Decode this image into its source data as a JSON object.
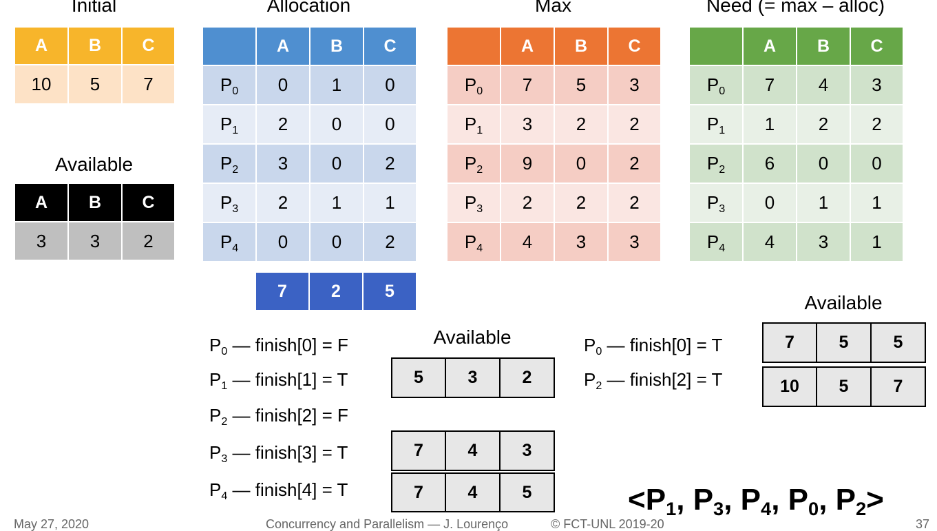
{
  "titles": {
    "initial": "Initial",
    "allocation": "Allocation",
    "max": "Max",
    "need": "Need (= max – alloc)",
    "available_left": "Available",
    "available_mid": "Available",
    "available_right": "Available"
  },
  "columns": [
    "A",
    "B",
    "C"
  ],
  "process_prefix": "P",
  "initial": [
    "10",
    "5",
    "7"
  ],
  "available": [
    "3",
    "3",
    "2"
  ],
  "allocation": [
    {
      "p": "0",
      "v": [
        "0",
        "1",
        "0"
      ]
    },
    {
      "p": "1",
      "v": [
        "2",
        "0",
        "0"
      ]
    },
    {
      "p": "2",
      "v": [
        "3",
        "0",
        "2"
      ]
    },
    {
      "p": "3",
      "v": [
        "2",
        "1",
        "1"
      ]
    },
    {
      "p": "4",
      "v": [
        "0",
        "0",
        "2"
      ]
    }
  ],
  "allocation_total": [
    "7",
    "2",
    "5"
  ],
  "max": [
    {
      "p": "0",
      "v": [
        "7",
        "5",
        "3"
      ]
    },
    {
      "p": "1",
      "v": [
        "3",
        "2",
        "2"
      ]
    },
    {
      "p": "2",
      "v": [
        "9",
        "0",
        "2"
      ]
    },
    {
      "p": "3",
      "v": [
        "2",
        "2",
        "2"
      ]
    },
    {
      "p": "4",
      "v": [
        "4",
        "3",
        "3"
      ]
    }
  ],
  "need": [
    {
      "p": "0",
      "v": [
        "7",
        "4",
        "3"
      ]
    },
    {
      "p": "1",
      "v": [
        "1",
        "2",
        "2"
      ]
    },
    {
      "p": "2",
      "v": [
        "6",
        "0",
        "0"
      ]
    },
    {
      "p": "3",
      "v": [
        "0",
        "1",
        "1"
      ]
    },
    {
      "p": "4",
      "v": [
        "4",
        "3",
        "1"
      ]
    }
  ],
  "pass1": [
    {
      "p": "0",
      "text": " — finish[0] = F"
    },
    {
      "p": "1",
      "text": " — finish[1] = T"
    },
    {
      "p": "2",
      "text": " — finish[2] = F"
    },
    {
      "p": "3",
      "text": " — finish[3] = T"
    },
    {
      "p": "4",
      "text": " — finish[4] = T"
    }
  ],
  "pass1_available": [
    [
      "5",
      "3",
      "2"
    ],
    [
      "7",
      "4",
      "3"
    ],
    [
      "7",
      "4",
      "5"
    ]
  ],
  "pass2": [
    {
      "p": "0",
      "text": " — finish[0] = T"
    },
    {
      "p": "2",
      "text": " — finish[2] = T"
    }
  ],
  "pass2_available": [
    [
      "7",
      "5",
      "5"
    ],
    [
      "10",
      "5",
      "7"
    ]
  ],
  "safe_sequence": {
    "open": "<",
    "close": ">",
    "sep": ", ",
    "items": [
      "1",
      "3",
      "4",
      "0",
      "2"
    ]
  },
  "footer": {
    "date": "May 27, 2020",
    "course": "Concurrency and Parallelism — J. Lourenço",
    "copyright": "© FCT-UNL 2019-20",
    "page": "37"
  },
  "colors": {
    "initial_header": "#f7b52b",
    "initial_row": "#fde2c6",
    "available_header": "#000000",
    "available_row": "#bfbfbf",
    "alloc_header": "#4f8fd0",
    "alloc_row_dark": "#c9d7ec",
    "alloc_row_light": "#e6ecf6",
    "alloc_total": "#3b62c4",
    "max_header": "#ec7533",
    "max_row_dark": "#f5cdc4",
    "max_row_light": "#fae6e2",
    "need_header": "#67a748",
    "need_row_dark": "#d0e2cb",
    "need_row_light": "#e8f0e6"
  }
}
